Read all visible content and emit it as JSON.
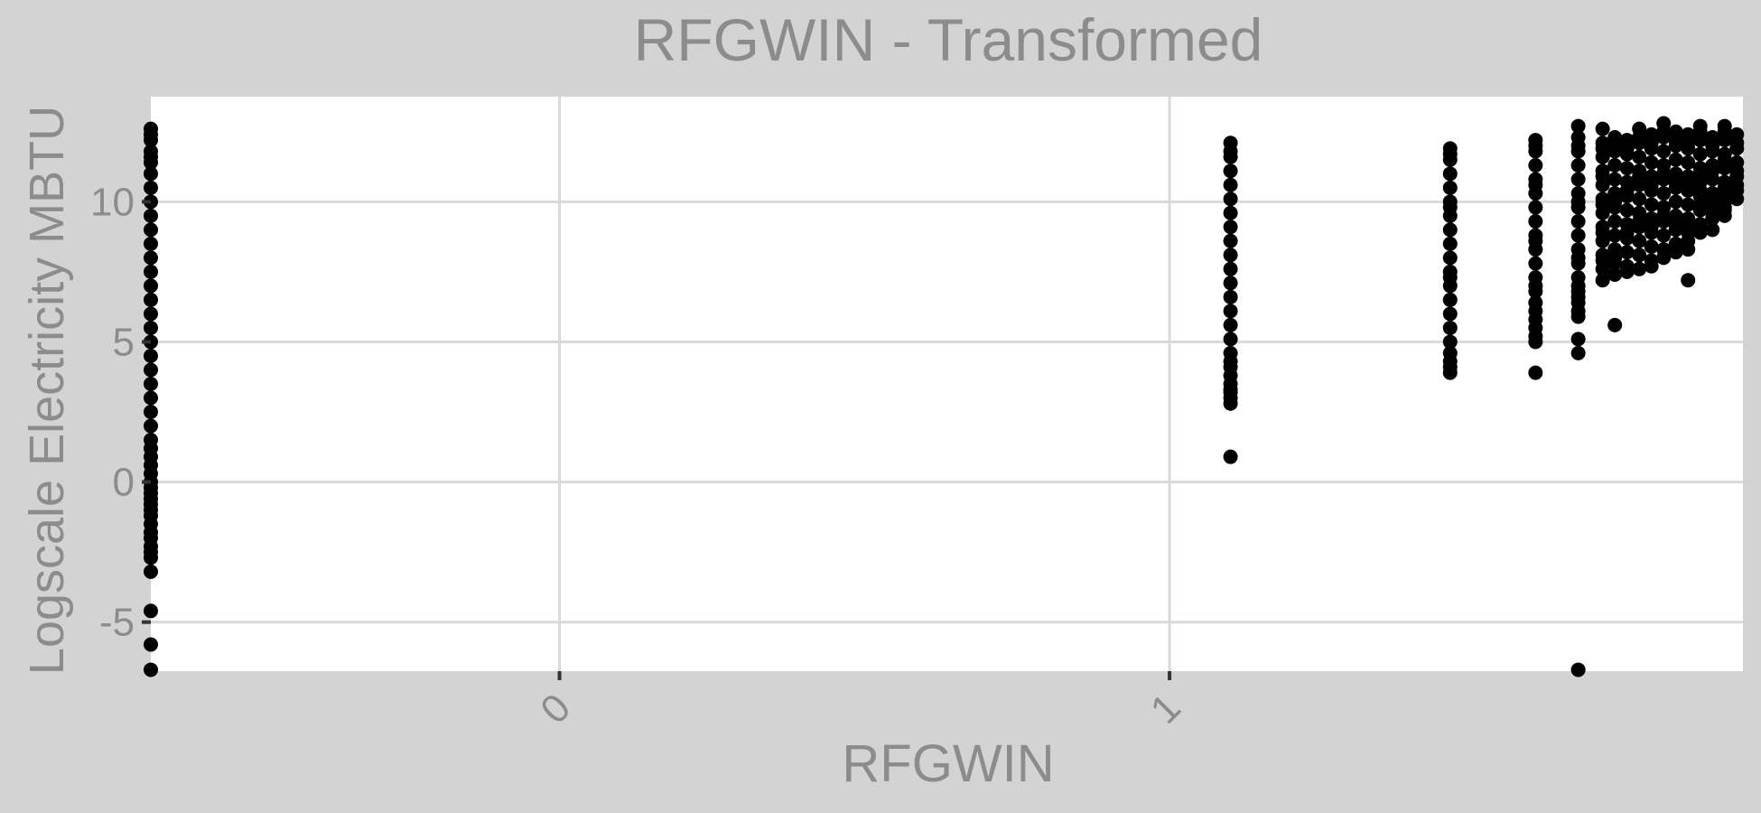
{
  "chart_data": {
    "type": "scatter",
    "title": "RFGWIN - Transformed",
    "xlabel": "RFGWIN",
    "ylabel": "Logscale Electricity MBTU",
    "xlim": [
      -0.67,
      1.94
    ],
    "ylim": [
      -6.75,
      13.75
    ],
    "x_ticks": [
      0,
      1
    ],
    "x_tick_labels": [
      "0",
      "1"
    ],
    "y_ticks": [
      -5,
      0,
      5,
      10
    ],
    "y_tick_labels": [
      "-5",
      "0",
      "5",
      "10"
    ],
    "grid": true,
    "legend": "none",
    "colors": {
      "page_background": "#d3d3d3",
      "panel_background": "#ffffff",
      "grid": "#d9d9d9",
      "text": "#8c8c8c",
      "points": "#000000"
    },
    "series": [
      {
        "x": [
          -0.67,
          -0.67,
          -0.67,
          -0.67,
          -0.67,
          -0.67,
          -0.67,
          -0.67,
          -0.67,
          -0.67,
          -0.67,
          -0.67,
          -0.67,
          -0.67,
          -0.67,
          -0.67,
          -0.67,
          -0.67,
          -0.67,
          -0.67,
          -0.67,
          -0.67,
          -0.67,
          -0.67,
          -0.67,
          -0.67,
          -0.67,
          -0.67,
          -0.67,
          -0.67,
          -0.67,
          -0.67,
          -0.67,
          -0.67,
          -0.67,
          -0.67,
          -0.67,
          -0.67,
          -0.67,
          -0.67,
          -0.67,
          -0.67,
          -0.67,
          -0.67,
          -0.67,
          -0.67,
          -0.67,
          1.1,
          1.1,
          1.1,
          1.1,
          1.1,
          1.1,
          1.1,
          1.1,
          1.1,
          1.1,
          1.1,
          1.1,
          1.1,
          1.1,
          1.1,
          1.1,
          1.1,
          1.1,
          1.1,
          1.1,
          1.1,
          1.1,
          1.1,
          1.1,
          1.1,
          1.1,
          1.46,
          1.46,
          1.46,
          1.46,
          1.46,
          1.46,
          1.46,
          1.46,
          1.46,
          1.46,
          1.46,
          1.46,
          1.46,
          1.46,
          1.46,
          1.46,
          1.46,
          1.46,
          1.46,
          1.46,
          1.46,
          1.46,
          1.6,
          1.6,
          1.6,
          1.6,
          1.6,
          1.6,
          1.6,
          1.6,
          1.6,
          1.6,
          1.6,
          1.6,
          1.6,
          1.6,
          1.6,
          1.6,
          1.6,
          1.6,
          1.6,
          1.6,
          1.6,
          1.6,
          1.6,
          1.67,
          1.67,
          1.67,
          1.67,
          1.67,
          1.67,
          1.67,
          1.67,
          1.67,
          1.67,
          1.67,
          1.67,
          1.67,
          1.67,
          1.67,
          1.67,
          1.67,
          1.67,
          1.67,
          1.67,
          1.67,
          1.67,
          1.67,
          1.67,
          1.71,
          1.71,
          1.71,
          1.71,
          1.71,
          1.71,
          1.71,
          1.71,
          1.71,
          1.71,
          1.71,
          1.71,
          1.71,
          1.71,
          1.71,
          1.71,
          1.71,
          1.73,
          1.73,
          1.73,
          1.73,
          1.73,
          1.73,
          1.73,
          1.73,
          1.73,
          1.73,
          1.73,
          1.73,
          1.73,
          1.73,
          1.73,
          1.75,
          1.75,
          1.75,
          1.75,
          1.75,
          1.75,
          1.75,
          1.75,
          1.75,
          1.75,
          1.75,
          1.75,
          1.75,
          1.75,
          1.77,
          1.77,
          1.77,
          1.77,
          1.77,
          1.77,
          1.77,
          1.77,
          1.77,
          1.77,
          1.77,
          1.77,
          1.77,
          1.77,
          1.79,
          1.79,
          1.79,
          1.79,
          1.79,
          1.79,
          1.79,
          1.79,
          1.79,
          1.79,
          1.79,
          1.79,
          1.79,
          1.79,
          1.81,
          1.81,
          1.81,
          1.81,
          1.81,
          1.81,
          1.81,
          1.81,
          1.81,
          1.81,
          1.81,
          1.81,
          1.81,
          1.81,
          1.83,
          1.83,
          1.83,
          1.83,
          1.83,
          1.83,
          1.83,
          1.83,
          1.83,
          1.83,
          1.83,
          1.83,
          1.83,
          1.85,
          1.85,
          1.85,
          1.85,
          1.85,
          1.85,
          1.85,
          1.85,
          1.85,
          1.85,
          1.85,
          1.85,
          1.85,
          1.85,
          1.87,
          1.87,
          1.87,
          1.87,
          1.87,
          1.87,
          1.87,
          1.87,
          1.87,
          1.87,
          1.87,
          1.87,
          1.87,
          1.89,
          1.89,
          1.89,
          1.89,
          1.89,
          1.89,
          1.89,
          1.89,
          1.89,
          1.89,
          1.89,
          1.89,
          1.91,
          1.91,
          1.91,
          1.91,
          1.91,
          1.91,
          1.91,
          1.91,
          1.91,
          1.91,
          1.91,
          1.91,
          1.91,
          1.93,
          1.93,
          1.93,
          1.93,
          1.93,
          1.93,
          1.93,
          1.93,
          1.93
        ],
        "y": [
          12.6,
          12.2,
          11.8,
          11.4,
          11.0,
          10.5,
          10.0,
          9.5,
          9.0,
          8.5,
          8.0,
          7.5,
          7.0,
          6.5,
          6.0,
          5.5,
          5.0,
          4.5,
          4.0,
          3.5,
          3.0,
          2.5,
          2.0,
          1.5,
          1.2,
          0.9,
          0.6,
          0.3,
          0.0,
          -0.2,
          -0.4,
          -0.6,
          -0.8,
          -1.0,
          -1.2,
          -1.5,
          -1.8,
          -2.0,
          -2.3,
          -2.5,
          -2.7,
          -3.2,
          -4.6,
          -5.8,
          -6.7,
          12.4,
          11.6,
          12.1,
          11.6,
          11.1,
          10.6,
          10.1,
          9.6,
          9.1,
          8.6,
          8.1,
          7.6,
          7.1,
          6.6,
          6.1,
          5.6,
          5.1,
          4.6,
          4.1,
          3.8,
          3.5,
          3.2,
          3.0,
          2.8,
          0.9,
          11.8,
          4.3,
          3.3,
          11.9,
          11.5,
          11.0,
          10.5,
          10.0,
          9.5,
          9.0,
          8.5,
          8.0,
          7.5,
          7.0,
          6.5,
          6.0,
          5.5,
          5.0,
          4.6,
          4.3,
          4.1,
          3.9,
          11.7,
          9.8,
          7.3,
          12.2,
          11.8,
          11.3,
          10.8,
          10.3,
          9.8,
          9.3,
          8.8,
          8.3,
          7.8,
          7.3,
          6.8,
          6.4,
          6.1,
          5.8,
          5.5,
          5.2,
          5.0,
          3.9,
          12.0,
          10.6,
          8.6,
          7.0,
          12.7,
          12.3,
          11.8,
          11.3,
          10.8,
          10.3,
          9.8,
          9.3,
          8.8,
          8.3,
          7.8,
          7.3,
          6.8,
          6.4,
          6.1,
          5.9,
          5.1,
          4.6,
          -6.7,
          12.0,
          10.0,
          8.0,
          7.0,
          6.6,
          12.6,
          12.1,
          11.6,
          11.1,
          10.6,
          10.1,
          9.6,
          9.1,
          8.6,
          8.1,
          7.6,
          7.2,
          11.9,
          10.9,
          9.9,
          8.9,
          7.9,
          12.3,
          11.8,
          11.3,
          10.8,
          10.3,
          9.8,
          9.3,
          8.8,
          8.3,
          7.8,
          7.4,
          5.6,
          12.0,
          10.0,
          8.0,
          12.2,
          11.7,
          11.2,
          10.7,
          10.2,
          9.7,
          9.2,
          8.7,
          8.2,
          7.7,
          7.5,
          11.9,
          10.4,
          8.9,
          12.6,
          12.1,
          11.6,
          11.1,
          10.6,
          10.1,
          9.6,
          9.1,
          8.6,
          8.1,
          7.6,
          12.3,
          10.9,
          9.3,
          12.4,
          11.9,
          11.4,
          10.9,
          10.4,
          9.9,
          9.4,
          8.9,
          8.4,
          7.9,
          7.7,
          12.1,
          10.6,
          9.1,
          12.8,
          12.3,
          11.8,
          11.3,
          10.8,
          10.3,
          9.8,
          9.3,
          8.8,
          8.3,
          8.0,
          12.5,
          11.0,
          9.5,
          12.5,
          12.0,
          11.5,
          11.0,
          10.5,
          10.0,
          9.5,
          9.0,
          8.5,
          8.2,
          12.2,
          10.7,
          9.2,
          12.4,
          11.9,
          11.4,
          10.9,
          10.4,
          9.9,
          9.4,
          8.9,
          8.6,
          8.3,
          12.1,
          10.6,
          9.1,
          7.2,
          12.7,
          12.2,
          11.7,
          11.2,
          10.7,
          10.2,
          9.7,
          9.2,
          8.9,
          12.5,
          11.0,
          10.4,
          9.9,
          12.3,
          11.8,
          11.3,
          10.8,
          10.3,
          9.8,
          9.4,
          9.0,
          12.0,
          11.1,
          10.1,
          9.6,
          12.7,
          12.2,
          11.7,
          11.2,
          10.7,
          10.2,
          9.8,
          9.5,
          12.5,
          11.5,
          10.5,
          10.0,
          9.7,
          12.4,
          11.9,
          11.4,
          10.9,
          10.4,
          10.1,
          12.1,
          11.1,
          10.6
        ]
      }
    ]
  }
}
